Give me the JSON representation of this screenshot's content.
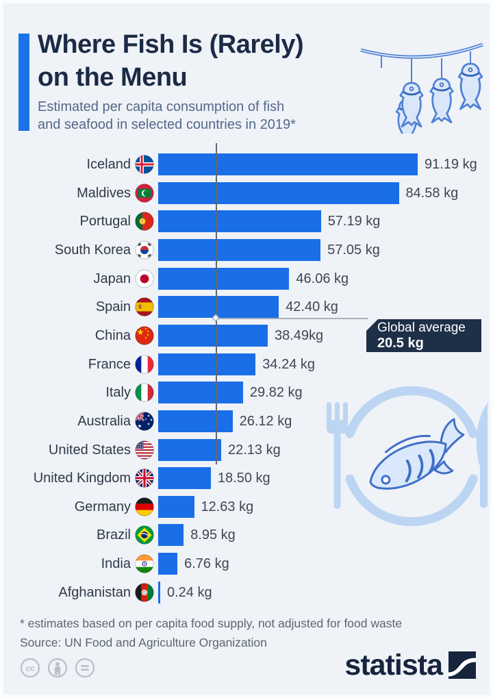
{
  "header": {
    "title_line1": "Where Fish Is (Rarely)",
    "title_line2": "on the Menu",
    "subtitle_line1": "Estimated per capita consumption of fish",
    "subtitle_line2": "and seafood in selected countries in 2019*"
  },
  "chart_data": {
    "type": "bar",
    "orientation": "horizontal",
    "unit": "kg",
    "xlim": [
      0,
      100
    ],
    "bar_color": "#1a6ee8",
    "categories": [
      "Iceland",
      "Maldives",
      "Portugal",
      "South Korea",
      "Japan",
      "Spain",
      "China",
      "France",
      "Italy",
      "Australia",
      "United States",
      "United Kingdom",
      "Germany",
      "Brazil",
      "India",
      "Afghanistan"
    ],
    "values": [
      91.19,
      84.58,
      57.19,
      57.05,
      46.06,
      42.4,
      38.49,
      34.24,
      29.82,
      26.12,
      22.13,
      18.5,
      12.63,
      8.95,
      6.76,
      0.24
    ],
    "value_labels": [
      "91.19 kg",
      "84.58 kg",
      "57.19 kg",
      "57.05 kg",
      "46.06 kg",
      "42.40 kg",
      "38.49kg",
      "34.24 kg",
      "29.82 kg",
      "26.12 kg",
      "22.13 kg",
      "18.50 kg",
      "12.63 kg",
      "8.95 kg",
      "6.76 kg",
      "0.24 kg"
    ],
    "flags": [
      "iceland",
      "maldives",
      "portugal",
      "south-korea",
      "japan",
      "spain",
      "china",
      "france",
      "italy",
      "australia",
      "united-states",
      "united-kingdom",
      "germany",
      "brazil",
      "india",
      "afghanistan"
    ],
    "annotation": {
      "label": "Global average",
      "value_label": "20.5 kg",
      "value": 20.5
    }
  },
  "footnote": {
    "line1": "* estimates based on per capita food supply, not adjusted for food waste",
    "line2": "Source: UN Food and Agriculture Organization"
  },
  "footer": {
    "brand": "statista",
    "license_icons": [
      "cc-icon",
      "attribution-person-icon",
      "equals-icon"
    ]
  },
  "colors": {
    "title": "#1c2b45",
    "subtitle": "#52688a",
    "bar": "#1a6ee8",
    "accent": "#1a73e8",
    "annotation_box": "#1e3048",
    "illustration": "#bcd5f2",
    "background": "#eff2f7"
  }
}
